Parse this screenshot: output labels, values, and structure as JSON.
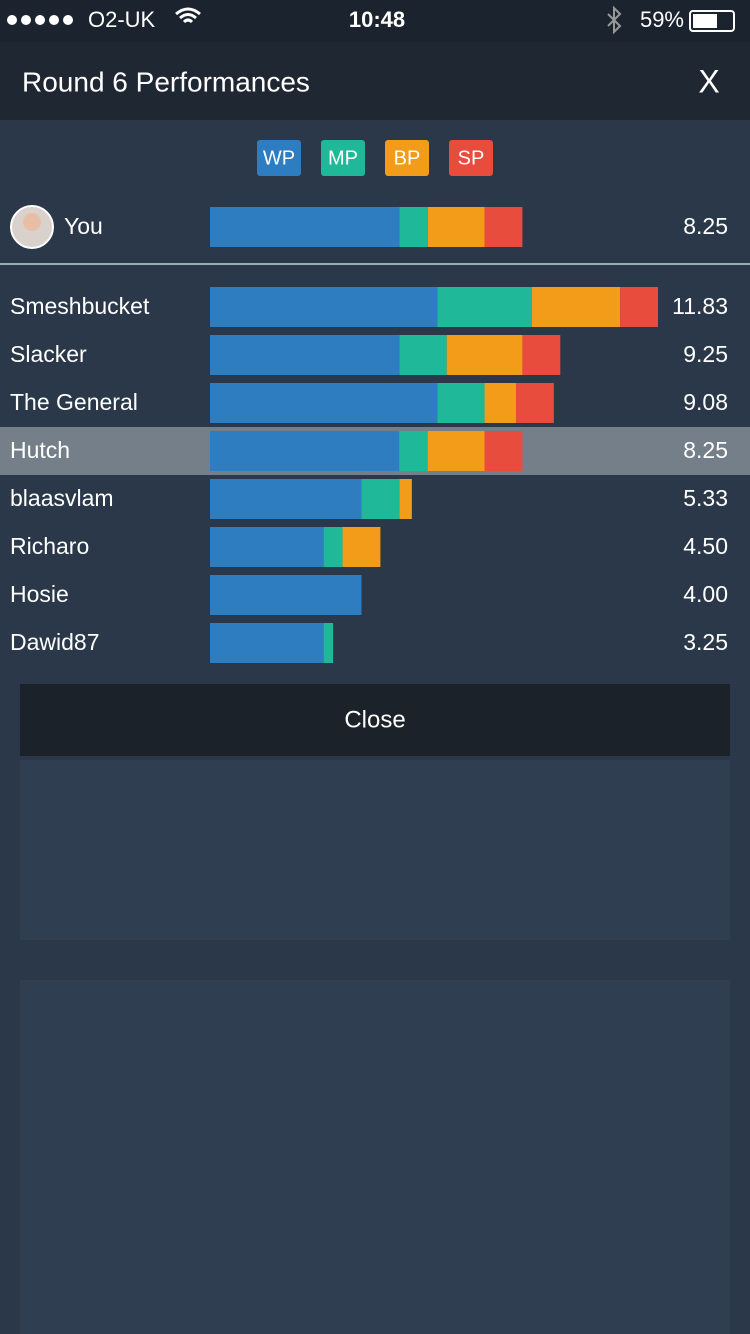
{
  "status_bar": {
    "carrier": "O2-UK",
    "time": "10:48",
    "battery": "59%"
  },
  "header": {
    "title": "Round 6 Performances",
    "close_icon": "X"
  },
  "chart_data": {
    "type": "bar",
    "stacked": true,
    "orientation": "horizontal",
    "categories": [
      "You",
      "Smeshbucket",
      "Slacker",
      "The General",
      "Hutch",
      "blaasvlam",
      "Richaro",
      "Hosie",
      "Dawid87"
    ],
    "series": [
      {
        "name": "WP",
        "color": "#2e7dc1",
        "values": [
          5,
          6,
          5,
          6,
          5,
          4,
          3,
          4,
          3
        ]
      },
      {
        "name": "MP",
        "color": "#1fb99a",
        "values": [
          0.75,
          2.5,
          1.25,
          1.25,
          0.75,
          1,
          0.5,
          0,
          0.25
        ]
      },
      {
        "name": "BP",
        "color": "#f39c1a",
        "values": [
          1.5,
          2.33,
          2,
          0.83,
          1.5,
          0.33,
          1,
          0,
          0
        ]
      },
      {
        "name": "SP",
        "color": "#e74c3c",
        "values": [
          1,
          1,
          1,
          1,
          1,
          0,
          0,
          0,
          0
        ]
      }
    ],
    "total_labels": [
      "8.25",
      "11.83",
      "9.25",
      "9.08",
      "8.25",
      "5.33",
      "4.50",
      "4.00",
      "3.25"
    ],
    "highlight": "Hutch"
  },
  "close_button": "Close"
}
